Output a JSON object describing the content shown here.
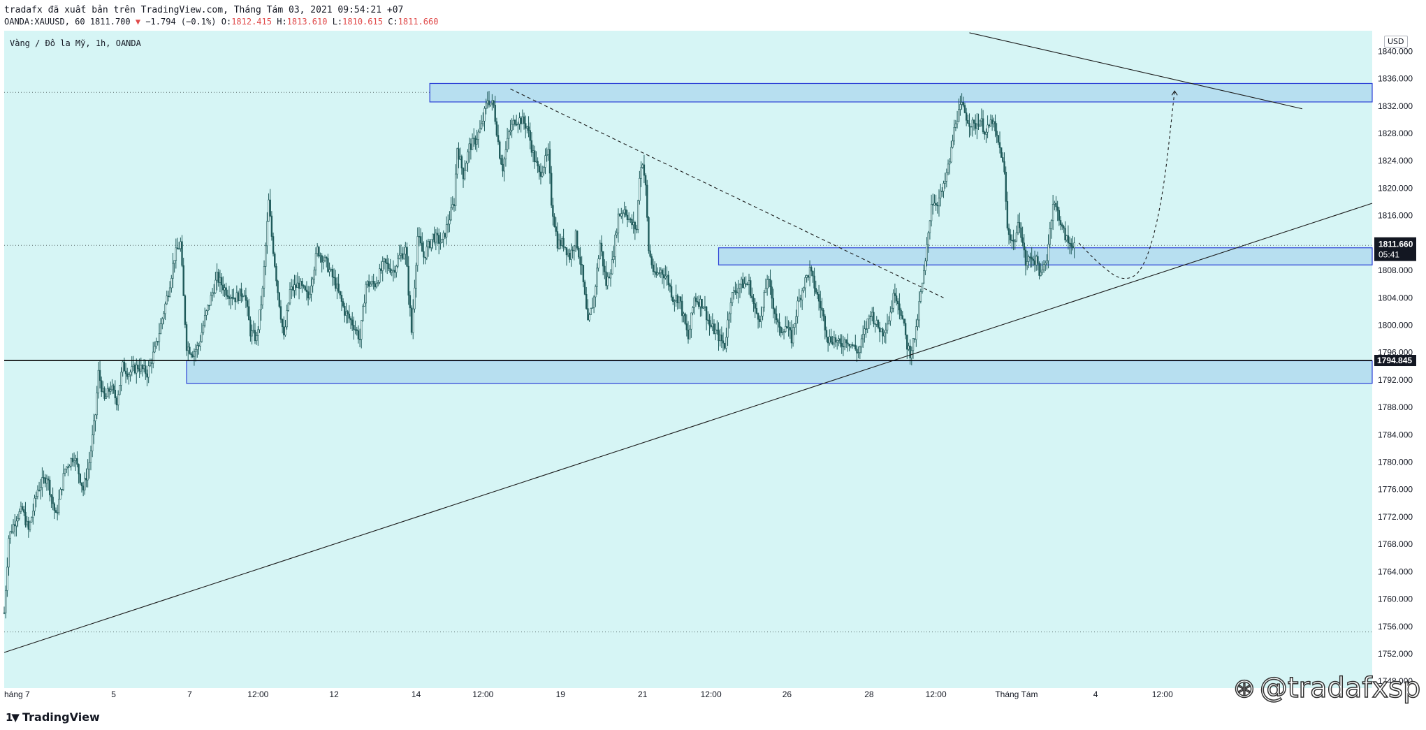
{
  "header": {
    "publisher_line": "tradafx đã xuất bản trên TradingView.com, Tháng Tám 03, 2021 09:54:21 +07",
    "symbol": "OANDA:XAUUSD, 60",
    "last": "1811.700",
    "change": "−1.794",
    "change_pct": "(−0.1%)",
    "o_label": "O:",
    "o_value": "1812.415",
    "h_label": "H:",
    "h_value": "1813.610",
    "l_label": "L:",
    "l_value": "1810.615",
    "c_label": "C:",
    "c_value": "1811.660"
  },
  "symbol_description": "Vàng / Đô la Mỹ, 1h, OANDA",
  "currency": "USD",
  "watermark": "@tradafxsp",
  "logo": "TradingView",
  "colors": {
    "background": "#d6f5f5",
    "candle": "#1f5a5a",
    "zone_fill": "#b7dff0",
    "zone_border": "#2a3fd6",
    "price_tag": "#131722"
  },
  "chart_data": {
    "type": "candlestick",
    "ylim": [
      1747,
      1843
    ],
    "y_ticks": [
      "1748.000",
      "1752.000",
      "1756.000",
      "1760.000",
      "1764.000",
      "1768.000",
      "1772.000",
      "1776.000",
      "1780.000",
      "1784.000",
      "1788.000",
      "1792.000",
      "1796.000",
      "1800.000",
      "1804.000",
      "1808.000",
      "1812.000",
      "1816.000",
      "1820.000",
      "1824.000",
      "1828.000",
      "1832.000",
      "1836.000",
      "1840.000"
    ],
    "x_ticks": [
      {
        "label": "háng 7",
        "x": 0
      },
      {
        "label": "5",
        "x": 72
      },
      {
        "label": "7",
        "x": 122
      },
      {
        "label": "12:00",
        "x": 167
      },
      {
        "label": "12",
        "x": 217
      },
      {
        "label": "14",
        "x": 271
      },
      {
        "label": "12:00",
        "x": 315
      },
      {
        "label": "19",
        "x": 366
      },
      {
        "label": "21",
        "x": 420
      },
      {
        "label": "12:00",
        "x": 465
      },
      {
        "label": "26",
        "x": 515
      },
      {
        "label": "28",
        "x": 569
      },
      {
        "label": "12:00",
        "x": 613
      },
      {
        "label": "Tháng Tám",
        "x": 666
      },
      {
        "label": "4",
        "x": 718
      },
      {
        "label": "12:00",
        "x": 762
      }
    ],
    "x_range": [
      0,
      900
    ],
    "price_path": [
      [
        0,
        1758
      ],
      [
        3,
        1769
      ],
      [
        8,
        1772
      ],
      [
        12,
        1773
      ],
      [
        16,
        1770
      ],
      [
        22,
        1776
      ],
      [
        28,
        1778
      ],
      [
        34,
        1772
      ],
      [
        40,
        1779
      ],
      [
        46,
        1781
      ],
      [
        52,
        1776
      ],
      [
        56,
        1780
      ],
      [
        60,
        1787
      ],
      [
        62,
        1793
      ],
      [
        66,
        1789
      ],
      [
        70,
        1791
      ],
      [
        74,
        1789
      ],
      [
        78,
        1794
      ],
      [
        82,
        1793
      ],
      [
        88,
        1794
      ],
      [
        94,
        1793
      ],
      [
        100,
        1797
      ],
      [
        104,
        1801
      ],
      [
        108,
        1805
      ],
      [
        112,
        1810
      ],
      [
        116,
        1812
      ],
      [
        118,
        1804
      ],
      [
        120,
        1797
      ],
      [
        124,
        1796
      ],
      [
        128,
        1797
      ],
      [
        132,
        1801
      ],
      [
        136,
        1804
      ],
      [
        140,
        1807
      ],
      [
        146,
        1805
      ],
      [
        152,
        1804
      ],
      [
        158,
        1805
      ],
      [
        162,
        1799
      ],
      [
        166,
        1798
      ],
      [
        170,
        1805
      ],
      [
        174,
        1818
      ],
      [
        176,
        1813
      ],
      [
        180,
        1805
      ],
      [
        184,
        1798
      ],
      [
        188,
        1805
      ],
      [
        194,
        1806
      ],
      [
        200,
        1804
      ],
      [
        206,
        1811
      ],
      [
        212,
        1809
      ],
      [
        218,
        1806
      ],
      [
        224,
        1802
      ],
      [
        230,
        1800
      ],
      [
        234,
        1798
      ],
      [
        238,
        1806
      ],
      [
        244,
        1806
      ],
      [
        250,
        1809
      ],
      [
        256,
        1808
      ],
      [
        260,
        1810
      ],
      [
        264,
        1811
      ],
      [
        268,
        1799
      ],
      [
        272,
        1813
      ],
      [
        276,
        1810
      ],
      [
        282,
        1813
      ],
      [
        288,
        1812
      ],
      [
        292,
        1815
      ],
      [
        296,
        1818
      ],
      [
        298,
        1826
      ],
      [
        302,
        1822
      ],
      [
        306,
        1826
      ],
      [
        310,
        1827
      ],
      [
        314,
        1829
      ],
      [
        318,
        1833
      ],
      [
        322,
        1832
      ],
      [
        326,
        1825
      ],
      [
        328,
        1823
      ],
      [
        332,
        1828
      ],
      [
        336,
        1830
      ],
      [
        340,
        1830
      ],
      [
        344,
        1829
      ],
      [
        348,
        1825
      ],
      [
        352,
        1822
      ],
      [
        358,
        1825
      ],
      [
        360,
        1818
      ],
      [
        364,
        1812
      ],
      [
        368,
        1812
      ],
      [
        372,
        1810
      ],
      [
        376,
        1813
      ],
      [
        380,
        1808
      ],
      [
        384,
        1800
      ],
      [
        388,
        1804
      ],
      [
        392,
        1812
      ],
      [
        396,
        1806
      ],
      [
        400,
        1809
      ],
      [
        404,
        1816
      ],
      [
        408,
        1817
      ],
      [
        412,
        1815
      ],
      [
        416,
        1814
      ],
      [
        418,
        1822
      ],
      [
        420,
        1824
      ],
      [
        422,
        1820
      ],
      [
        424,
        1811
      ],
      [
        428,
        1807
      ],
      [
        432,
        1808
      ],
      [
        436,
        1807
      ],
      [
        440,
        1804
      ],
      [
        444,
        1804
      ],
      [
        450,
        1798
      ],
      [
        454,
        1804
      ],
      [
        460,
        1803
      ],
      [
        464,
        1800
      ],
      [
        468,
        1799
      ],
      [
        474,
        1797
      ],
      [
        478,
        1804
      ],
      [
        484,
        1806
      ],
      [
        490,
        1806
      ],
      [
        494,
        1802
      ],
      [
        498,
        1801
      ],
      [
        502,
        1807
      ],
      [
        506,
        1803
      ],
      [
        510,
        1799
      ],
      [
        514,
        1800
      ],
      [
        518,
        1798
      ],
      [
        522,
        1803
      ],
      [
        526,
        1806
      ],
      [
        530,
        1808
      ],
      [
        534,
        1805
      ],
      [
        538,
        1802
      ],
      [
        542,
        1798
      ],
      [
        546,
        1798
      ],
      [
        550,
        1797
      ],
      [
        554,
        1798
      ],
      [
        558,
        1797
      ],
      [
        562,
        1796
      ],
      [
        566,
        1799
      ],
      [
        570,
        1802
      ],
      [
        574,
        1800
      ],
      [
        578,
        1799
      ],
      [
        582,
        1801
      ],
      [
        586,
        1805
      ],
      [
        590,
        1802
      ],
      [
        594,
        1797
      ],
      [
        596,
        1796
      ],
      [
        600,
        1799
      ],
      [
        602,
        1803
      ],
      [
        606,
        1809
      ],
      [
        610,
        1818
      ],
      [
        614,
        1818
      ],
      [
        618,
        1820
      ],
      [
        622,
        1824
      ],
      [
        626,
        1830
      ],
      [
        630,
        1832
      ],
      [
        634,
        1830
      ],
      [
        638,
        1829
      ],
      [
        642,
        1830
      ],
      [
        646,
        1828
      ],
      [
        650,
        1830
      ],
      [
        652,
        1828
      ],
      [
        656,
        1825
      ],
      [
        658,
        1822
      ],
      [
        660,
        1814
      ],
      [
        664,
        1812
      ],
      [
        668,
        1815
      ],
      [
        672,
        1809
      ],
      [
        676,
        1810
      ],
      [
        680,
        1809
      ],
      [
        682,
        1807
      ],
      [
        686,
        1810
      ],
      [
        690,
        1818
      ],
      [
        694,
        1816
      ],
      [
        696,
        1814
      ],
      [
        700,
        1812
      ],
      [
        704,
        1812
      ]
    ],
    "zones": [
      {
        "x1": 280,
        "x2": 900,
        "y_low": 1832.6,
        "y_high": 1835.3
      },
      {
        "x1": 470,
        "x2": 900,
        "y_low": 1808.8,
        "y_high": 1811.3
      },
      {
        "x1": 120,
        "x2": 900,
        "y_low": 1791.5,
        "y_high": 1794.8
      }
    ],
    "horizontal_line": {
      "y": 1794.845,
      "label": "1794.845"
    },
    "dotted_lines": [
      1834.0,
      1811.66,
      1755.2
    ],
    "trendlines": [
      {
        "style": "solid",
        "x1": 0,
        "y1": 1752.2,
        "x2": 900,
        "y2": 1817.8
      },
      {
        "style": "solid",
        "x1": 635,
        "y1": 1842.7,
        "x2": 854,
        "y2": 1831.6
      },
      {
        "style": "dashed",
        "x1": 333,
        "y1": 1834.5,
        "x2": 618,
        "y2": 1804.0
      }
    ],
    "projection": [
      [
        707,
        1812
      ],
      [
        720,
        1809
      ],
      [
        736,
        1806.3
      ],
      [
        750,
        1808
      ],
      [
        762,
        1818
      ],
      [
        770,
        1834.2
      ]
    ],
    "price_tag": {
      "value": "1811.660",
      "countdown": "05:41",
      "y": 1811.0
    }
  }
}
